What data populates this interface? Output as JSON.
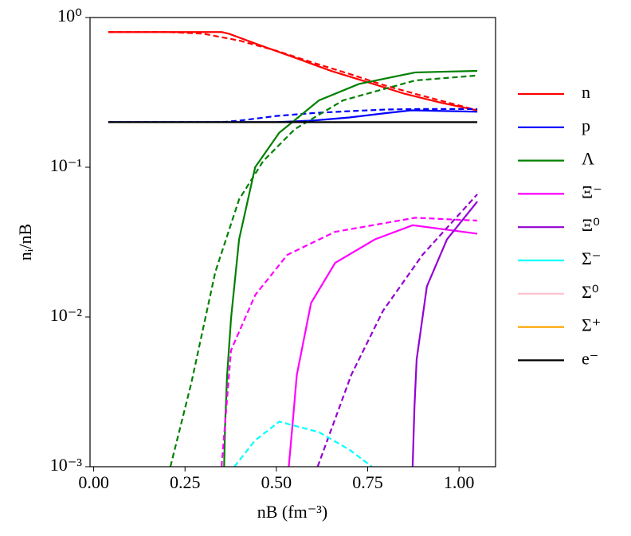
{
  "chart_data": {
    "type": "line",
    "xlabel": "nB (fm⁻³)",
    "ylabel": "nᵢ/nB",
    "yscale": "log",
    "xlim": [
      -0.01,
      1.1
    ],
    "ylim": [
      0.001,
      1
    ],
    "xticks": [
      {
        "value": 0,
        "label": "0.00"
      },
      {
        "value": 0.25,
        "label": "0.25"
      },
      {
        "value": 0.5,
        "label": "0.50"
      },
      {
        "value": 0.75,
        "label": "0.75"
      },
      {
        "value": 1,
        "label": "1.00"
      }
    ],
    "yticks": [
      {
        "value": 1,
        "label": "10⁰"
      },
      {
        "value": 0.1,
        "label": "10⁻¹"
      },
      {
        "value": 0.01,
        "label": "10⁻²"
      },
      {
        "value": 0.001,
        "label": "10⁻³"
      }
    ],
    "legend": "right",
    "series": [
      {
        "name": "n",
        "color": "#ff0000",
        "solid": {
          "x": [
            0.04,
            0.2,
            0.35,
            0.37,
            0.45,
            0.55,
            0.65,
            0.75,
            0.85,
            0.95,
            1.05
          ],
          "values": [
            0.8,
            0.8,
            0.8,
            0.78,
            0.66,
            0.54,
            0.44,
            0.37,
            0.31,
            0.27,
            0.24
          ]
        },
        "dashed": {
          "x": [
            0.04,
            0.2,
            0.3,
            0.4,
            0.5,
            0.6,
            0.7,
            0.8,
            0.9,
            1.05
          ],
          "values": [
            0.8,
            0.8,
            0.78,
            0.7,
            0.6,
            0.5,
            0.42,
            0.35,
            0.3,
            0.24
          ]
        }
      },
      {
        "name": "p",
        "color": "#0000ff",
        "solid": {
          "x": [
            0.04,
            0.35,
            0.5,
            0.6,
            0.7,
            0.8,
            0.87,
            1.05
          ],
          "values": [
            0.2,
            0.2,
            0.2,
            0.205,
            0.215,
            0.23,
            0.24,
            0.235
          ]
        },
        "dashed": {
          "x": [
            0.04,
            0.35,
            0.4,
            0.5,
            0.6,
            0.7,
            0.8,
            0.9,
            1.05
          ],
          "values": [
            0.2,
            0.2,
            0.205,
            0.22,
            0.23,
            0.237,
            0.243,
            0.245,
            0.245
          ]
        }
      },
      {
        "name": "Λ",
        "color": "#008000",
        "solid": {
          "x": [
            0.357,
            0.36,
            0.365,
            0.376,
            0.398,
            0.442,
            0.508,
            0.617,
            0.726,
            0.88,
            1.05
          ],
          "values": [
            0.001,
            0.002,
            0.004,
            0.0098,
            0.033,
            0.1,
            0.17,
            0.28,
            0.36,
            0.43,
            0.44
          ]
        },
        "dashed": {
          "x": [
            0.21,
            0.267,
            0.333,
            0.398,
            0.464,
            0.551,
            0.683,
            0.88,
            1.05
          ],
          "values": [
            0.001,
            0.0036,
            0.02,
            0.061,
            0.11,
            0.18,
            0.28,
            0.38,
            0.41
          ]
        }
      },
      {
        "name": "Ξ⁻",
        "color": "#ff00ff",
        "solid": {
          "x": [
            0.534,
            0.545,
            0.556,
            0.595,
            0.661,
            0.77,
            0.873,
            1.05
          ],
          "values": [
            0.001,
            0.002,
            0.0041,
            0.0124,
            0.023,
            0.033,
            0.041,
            0.036
          ]
        },
        "dashed": {
          "x": [
            0.35,
            0.376,
            0.442,
            0.53,
            0.66,
            0.88,
            1.05
          ],
          "values": [
            0.001,
            0.006,
            0.014,
            0.026,
            0.037,
            0.046,
            0.044
          ]
        }
      },
      {
        "name": "Ξ⁰",
        "color": "#9400d3",
        "solid": {
          "x": [
            0.873,
            0.878,
            0.884,
            0.912,
            0.967,
            1.05
          ],
          "values": [
            0.001,
            0.0025,
            0.0052,
            0.016,
            0.033,
            0.059
          ]
        },
        "dashed": {
          "x": [
            0.613,
            0.705,
            0.792,
            0.9,
            1.05
          ],
          "values": [
            0.001,
            0.0041,
            0.011,
            0.026,
            0.066
          ]
        }
      },
      {
        "name": "Σ⁻",
        "color": "#00ffff",
        "dashed": {
          "x": [
            0.385,
            0.442,
            0.508,
            0.617,
            0.7,
            0.762
          ],
          "values": [
            0.001,
            0.0015,
            0.002,
            0.0017,
            0.0013,
            0.001
          ]
        }
      },
      {
        "name": "Σ⁰",
        "color": "#ffc0cb"
      },
      {
        "name": "Σ⁺",
        "color": "#ffa500"
      },
      {
        "name": "e⁻",
        "color": "#000000",
        "solid": {
          "x": [
            0.04,
            1.05
          ],
          "values": [
            0.2,
            0.2
          ]
        }
      }
    ]
  }
}
